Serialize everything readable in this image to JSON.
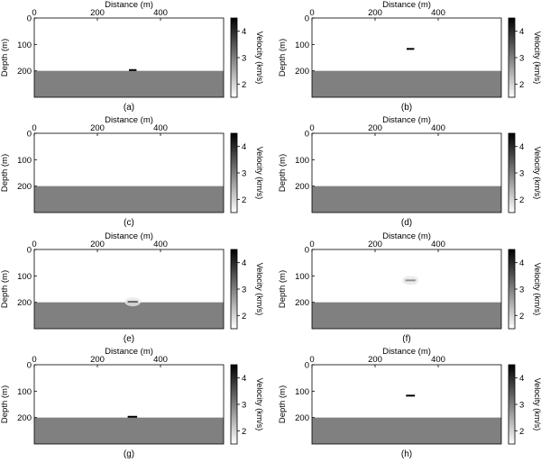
{
  "colorbar": {
    "label": "Velocity (km/s)",
    "ticks": [
      "2",
      "3",
      "4"
    ],
    "tick_values": [
      2,
      3,
      4
    ],
    "range": [
      1.5,
      4.5
    ],
    "colors": {
      "low": "#ffffff",
      "high": "#000000"
    }
  },
  "chart_data": [
    {
      "type": "heatmap",
      "panel_label": "(a)",
      "xlabel": "Distance (m)",
      "ylabel": "Depth (m)",
      "xlim": [
        0,
        600
      ],
      "ylim": [
        0,
        300
      ],
      "xticks": [
        "0",
        "200",
        "400"
      ],
      "yticks": [
        "0",
        "100",
        "200"
      ],
      "background_velocity": 1.5,
      "layer": {
        "top_depth": 200,
        "velocity": 3.0
      },
      "anomaly": {
        "x": [
          300,
          324
        ],
        "depth": 197,
        "velocity": 4.5
      },
      "faint_anomaly": false
    },
    {
      "type": "heatmap",
      "panel_label": "(b)",
      "xlabel": "Distance (m)",
      "ylabel": "Depth (m)",
      "xlim": [
        0,
        600
      ],
      "ylim": [
        0,
        300
      ],
      "xticks": [
        "0",
        "200",
        "400"
      ],
      "yticks": [
        "0",
        "100",
        "200"
      ],
      "background_velocity": 1.5,
      "layer": {
        "top_depth": 200,
        "velocity": 3.0
      },
      "anomaly": {
        "x": [
          300,
          324
        ],
        "depth": 117,
        "velocity": 4.5
      },
      "faint_anomaly": false
    },
    {
      "type": "heatmap",
      "panel_label": "(c)",
      "xlabel": "Distance (m)",
      "ylabel": "Depth (m)",
      "xlim": [
        0,
        600
      ],
      "ylim": [
        0,
        300
      ],
      "xticks": [
        "0",
        "200",
        "400"
      ],
      "yticks": [
        "0",
        "100",
        "200"
      ],
      "background_velocity": 1.5,
      "layer": {
        "top_depth": 200,
        "velocity": 3.0
      },
      "anomaly": null,
      "faint_anomaly": false
    },
    {
      "type": "heatmap",
      "panel_label": "(d)",
      "xlabel": "Distance (m)",
      "ylabel": "Depth (m)",
      "xlim": [
        0,
        600
      ],
      "ylim": [
        0,
        300
      ],
      "xticks": [
        "0",
        "200",
        "400"
      ],
      "yticks": [
        "0",
        "100",
        "200"
      ],
      "background_velocity": 1.5,
      "layer": {
        "top_depth": 200,
        "velocity": 3.0
      },
      "anomaly": null,
      "faint_anomaly": false
    },
    {
      "type": "heatmap",
      "panel_label": "(e)",
      "xlabel": "Distance (m)",
      "ylabel": "Depth (m)",
      "xlim": [
        0,
        600
      ],
      "ylim": [
        0,
        300
      ],
      "xticks": [
        "0",
        "200",
        "400"
      ],
      "yticks": [
        "0",
        "100",
        "200"
      ],
      "background_velocity": 1.5,
      "layer": {
        "top_depth": 200,
        "velocity": 3.0
      },
      "anomaly": {
        "x": [
          296,
          328
        ],
        "depth": 198,
        "velocity": 3.3
      },
      "faint_anomaly": true
    },
    {
      "type": "heatmap",
      "panel_label": "(f)",
      "xlabel": "Distance (m)",
      "ylabel": "Depth (m)",
      "xlim": [
        0,
        600
      ],
      "ylim": [
        0,
        300
      ],
      "xticks": [
        "0",
        "200",
        "400"
      ],
      "yticks": [
        "0",
        "100",
        "200"
      ],
      "background_velocity": 1.5,
      "layer": {
        "top_depth": 200,
        "velocity": 3.0
      },
      "anomaly": {
        "x": [
          296,
          328
        ],
        "depth": 117,
        "velocity": 2.8
      },
      "faint_anomaly": true
    },
    {
      "type": "heatmap",
      "panel_label": "(g)",
      "xlabel": "Distance (m)",
      "ylabel": "Depth (m)",
      "xlim": [
        0,
        600
      ],
      "ylim": [
        0,
        300
      ],
      "xticks": [
        "0",
        "200",
        "400"
      ],
      "yticks": [
        "0",
        "100",
        "200"
      ],
      "background_velocity": 1.5,
      "layer": {
        "top_depth": 200,
        "velocity": 3.0
      },
      "anomaly": {
        "x": [
          296,
          326
        ],
        "depth": 197,
        "velocity": 4.5
      },
      "faint_anomaly": false
    },
    {
      "type": "heatmap",
      "panel_label": "(h)",
      "xlabel": "Distance (m)",
      "ylabel": "Depth (m)",
      "xlim": [
        0,
        600
      ],
      "ylim": [
        0,
        300
      ],
      "xticks": [
        "0",
        "200",
        "400"
      ],
      "yticks": [
        "0",
        "100",
        "200"
      ],
      "background_velocity": 1.5,
      "layer": {
        "top_depth": 200,
        "velocity": 3.0
      },
      "anomaly": {
        "x": [
          298,
          326
        ],
        "depth": 117,
        "velocity": 4.5
      },
      "faint_anomaly": false
    }
  ]
}
